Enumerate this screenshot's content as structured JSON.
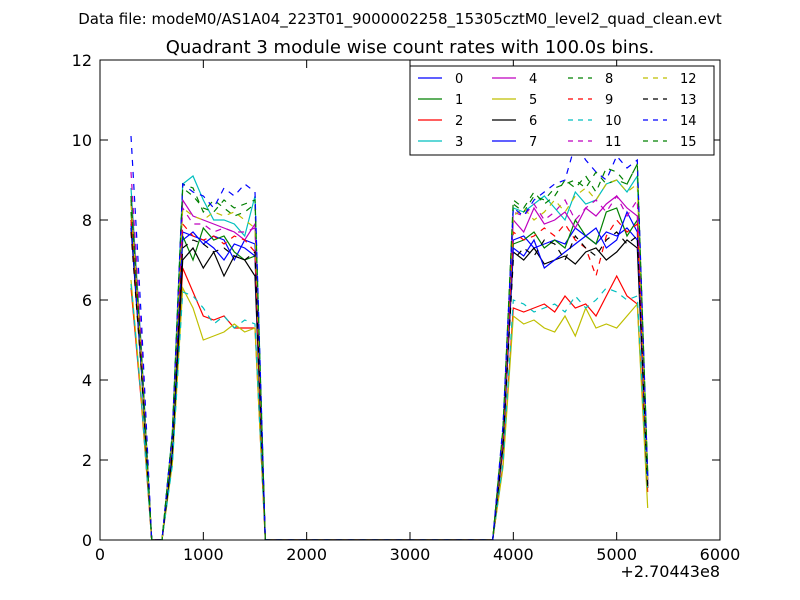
{
  "chart_data": {
    "type": "line",
    "suptitle": "Data file: modeM0/AS1A04_223T01_9000002258_15305cztM0_level2_quad_clean.evt",
    "title": "Quadrant 3 module wise count rates with 100.0s bins.",
    "xlabel": "",
    "ylabel": "",
    "x_offset_label": "+2.70443e8",
    "xlim": [
      0,
      6000
    ],
    "ylim": [
      0,
      12
    ],
    "xticks": [
      "0",
      "1000",
      "2000",
      "3000",
      "4000",
      "5000",
      "6000"
    ],
    "yticks": [
      "0",
      "2",
      "4",
      "6",
      "8",
      "10",
      "12"
    ],
    "legend_placement": "top-right",
    "grid": false,
    "x": [
      300,
      400,
      500,
      600,
      700,
      800,
      900,
      1000,
      1100,
      1200,
      1300,
      1400,
      1500,
      1600,
      1700,
      1800,
      1900,
      2000,
      2100,
      2200,
      2300,
      2400,
      2500,
      2600,
      2700,
      2800,
      2900,
      3000,
      3100,
      3200,
      3300,
      3400,
      3500,
      3600,
      3700,
      3800,
      3900,
      4000,
      4100,
      4200,
      4300,
      4400,
      4500,
      4600,
      4700,
      4800,
      4900,
      5000,
      5100,
      5200,
      5300
    ],
    "series": [
      {
        "name": "0",
        "color": "#0000ff",
        "dash": "solid",
        "active1": [
          7.5,
          7.7,
          7.6,
          7.4,
          7.6,
          7.3,
          7.5,
          7.0,
          7.3,
          7.5,
          7.4
        ],
        "active2": [
          7.5,
          7.6,
          7.3,
          7.4,
          7.6,
          7.5,
          7.4,
          7.8,
          7.6,
          7.4,
          7.7,
          7.5,
          7.6,
          7.8,
          7.5,
          7.9
        ],
        "first": 8.0,
        "edge2": 6.9,
        "end": 1.5
      },
      {
        "name": "1",
        "color": "#008000",
        "dash": "solid",
        "active1": [
          7.6,
          7.0,
          7.4,
          7.8,
          7.5,
          7.9,
          7.6,
          7.2,
          7.6,
          7.0,
          7.1
        ],
        "active2": [
          7.4,
          7.5,
          7.7,
          7.3,
          7.9,
          7.5,
          7.3,
          8.0,
          7.6,
          7.4,
          8.2,
          7.7,
          8.3,
          7.6,
          8.0,
          8.1
        ],
        "first": 8.2,
        "edge2": 7.0,
        "end": 1.4
      },
      {
        "name": "2",
        "color": "#ff0000",
        "dash": "solid",
        "active1": [
          6.8,
          6.2,
          5.2,
          5.6,
          5.5,
          5.6,
          5.6,
          5.3,
          5.4,
          5.3,
          5.3
        ],
        "active2": [
          5.8,
          5.7,
          5.8,
          5.9,
          5.9,
          5.7,
          6.1,
          5.8,
          5.9,
          5.6,
          6.1,
          5.8,
          6.6,
          6.1,
          5.9,
          6.0
        ],
        "first": 6.3,
        "edge2": 5.4,
        "end": 1.2
      },
      {
        "name": "3",
        "color": "#00bfbf",
        "dash": "solid",
        "active1": [
          8.9,
          9.1,
          8.7,
          8.5,
          8.0,
          8.2,
          8.0,
          7.9,
          8.4,
          7.6,
          8.6
        ],
        "active2": [
          8.3,
          8.2,
          8.4,
          8.6,
          8.1,
          8.3,
          8.0,
          8.7,
          8.4,
          8.5,
          8.9,
          8.6,
          9.0,
          8.7,
          9.1,
          9.0
        ],
        "first": 8.8,
        "edge2": 7.8,
        "end": 1.6
      },
      {
        "name": "4",
        "color": "#bf00bf",
        "dash": "solid",
        "active1": [
          8.5,
          8.1,
          8.2,
          8.0,
          7.9,
          8.0,
          7.8,
          7.7,
          8.1,
          7.5,
          7.9
        ],
        "active2": [
          8.0,
          7.7,
          8.3,
          7.9,
          8.1,
          8.0,
          8.2,
          7.8,
          8.3,
          8.1,
          8.4,
          8.2,
          8.6,
          8.3,
          8.1,
          8.4
        ],
        "first": 8.6,
        "edge2": 7.6,
        "end": 1.5
      },
      {
        "name": "5",
        "color": "#bfbf00",
        "dash": "solid",
        "active1": [
          6.3,
          5.8,
          5.3,
          5.0,
          5.1,
          4.8,
          5.2,
          5.4,
          5.5,
          5.2,
          5.3
        ],
        "active2": [
          5.6,
          5.4,
          5.5,
          5.3,
          5.5,
          5.2,
          5.6,
          5.1,
          5.8,
          5.3,
          5.4,
          5.5,
          5.3,
          5.6,
          5.9,
          5.7
        ],
        "first": 6.5,
        "edge2": 5.2,
        "end": 0.8
      },
      {
        "name": "6",
        "color": "#000000",
        "dash": "solid",
        "active1": [
          7.0,
          7.3,
          6.9,
          6.8,
          7.2,
          7.0,
          6.6,
          7.1,
          6.7,
          7.0,
          6.6
        ],
        "active2": [
          7.2,
          7.0,
          7.3,
          6.9,
          7.2,
          7.0,
          7.1,
          6.9,
          7.2,
          7.3,
          7.0,
          7.4,
          7.2,
          7.5,
          7.3,
          7.6
        ],
        "first": 7.8,
        "edge2": 6.6,
        "end": 1.3
      },
      {
        "name": "7",
        "color": "#0000ff",
        "dash": "solid",
        "active1": [
          7.7,
          7.6,
          7.2,
          7.5,
          7.3,
          7.6,
          7.0,
          7.4,
          7.2,
          7.3,
          7.1
        ],
        "active2": [
          7.3,
          7.1,
          7.5,
          6.8,
          7.4,
          7.0,
          7.2,
          7.4,
          7.6,
          7.8,
          7.3,
          7.9,
          7.5,
          8.2,
          7.7,
          8.3
        ],
        "first": 7.9,
        "edge2": 7.0,
        "end": 1.4
      },
      {
        "name": "8",
        "color": "#008000",
        "dash": "dash",
        "active1": [
          8.9,
          8.8,
          8.4,
          8.2,
          8.5,
          8.2,
          8.3,
          8.1,
          8.5,
          8.2,
          8.4
        ],
        "active2": [
          8.4,
          8.2,
          8.6,
          8.5,
          8.7,
          8.8,
          8.9,
          9.0,
          8.8,
          9.2,
          8.9,
          9.3,
          9.0,
          8.9,
          9.4,
          9.8
        ],
        "first": 8.6,
        "edge2": 7.9,
        "end": 1.6
      },
      {
        "name": "9",
        "color": "#ff0000",
        "dash": "dash",
        "active1": [
          7.9,
          7.6,
          7.7,
          7.5,
          7.6,
          7.8,
          7.4,
          7.6,
          7.3,
          7.5,
          7.2
        ],
        "active2": [
          7.7,
          7.5,
          7.6,
          7.8,
          7.4,
          7.6,
          7.9,
          7.5,
          7.3,
          6.6,
          7.6,
          7.8,
          8.0,
          7.7,
          7.9,
          8.1
        ],
        "first": 8.0,
        "edge2": 7.2,
        "end": 1.3
      },
      {
        "name": "10",
        "color": "#00bfbf",
        "dash": "dash",
        "active1": [
          6.2,
          6.1,
          6.0,
          5.8,
          5.4,
          5.7,
          5.6,
          5.3,
          5.7,
          5.5,
          5.4
        ],
        "active2": [
          6.0,
          5.9,
          5.7,
          5.8,
          5.6,
          5.9,
          5.7,
          6.1,
          5.8,
          6.0,
          6.3,
          6.1,
          6.2,
          6.0,
          6.1,
          6.2
        ],
        "first": 6.4,
        "edge2": 5.5,
        "end": 1.2
      },
      {
        "name": "11",
        "color": "#bf00bf",
        "dash": "dash",
        "active1": [
          8.3,
          7.9,
          8.0,
          7.9,
          7.7,
          7.9,
          7.8,
          7.7,
          8.0,
          7.7,
          7.8
        ],
        "active2": [
          8.2,
          8.1,
          8.4,
          8.0,
          8.3,
          8.2,
          8.5,
          8.0,
          8.3,
          8.5,
          8.2,
          8.4,
          8.6,
          8.1,
          8.5,
          8.2
        ],
        "first": 9.2,
        "edge2": 7.7,
        "end": 1.5
      },
      {
        "name": "12",
        "color": "#bfbf00",
        "dash": "dash",
        "active1": [
          8.3,
          8.1,
          8.4,
          8.0,
          8.2,
          7.9,
          8.1,
          8.2,
          7.9,
          8.0,
          7.8
        ],
        "active2": [
          8.1,
          8.3,
          8.0,
          8.2,
          8.4,
          8.5,
          8.2,
          8.6,
          8.8,
          8.5,
          8.9,
          8.6,
          9.0,
          8.7,
          8.9,
          8.6
        ],
        "first": 8.4,
        "edge2": 7.8,
        "end": 1.4
      },
      {
        "name": "13",
        "color": "#000000",
        "dash": "dash",
        "active1": [
          7.3,
          7.5,
          7.1,
          7.4,
          7.2,
          7.6,
          7.3,
          7.1,
          7.4,
          7.0,
          7.2
        ],
        "active2": [
          7.0,
          7.3,
          7.1,
          7.5,
          7.2,
          7.4,
          7.0,
          7.6,
          7.3,
          7.1,
          7.5,
          7.2,
          7.7,
          7.4,
          7.6,
          7.3
        ],
        "first": 7.7,
        "edge2": 6.8,
        "end": 1.3
      },
      {
        "name": "14",
        "color": "#0000ff",
        "dash": "dash",
        "active1": [
          8.9,
          8.7,
          8.5,
          8.6,
          8.3,
          8.5,
          8.8,
          8.6,
          9.2,
          8.9,
          8.7
        ],
        "active2": [
          8.3,
          8.1,
          8.5,
          8.7,
          8.8,
          8.9,
          9.0,
          9.9,
          9.5,
          9.2,
          9.0,
          9.4,
          9.6,
          9.3,
          9.5,
          9.7
        ],
        "first": 10.1,
        "edge2": 8.2,
        "end": 1.6
      },
      {
        "name": "15",
        "color": "#008000",
        "dash": "dash",
        "active1": [
          8.8,
          8.6,
          8.4,
          8.3,
          8.2,
          8.4,
          8.5,
          8.3,
          8.6,
          8.4,
          8.5
        ],
        "active2": [
          8.5,
          8.3,
          8.7,
          8.4,
          8.9,
          8.6,
          9.0,
          8.8,
          9.1,
          8.7,
          9.3,
          9.0,
          9.2,
          8.9,
          9.4,
          9.9
        ],
        "first": 8.5,
        "edge2": 8.0,
        "end": 1.7
      }
    ]
  }
}
